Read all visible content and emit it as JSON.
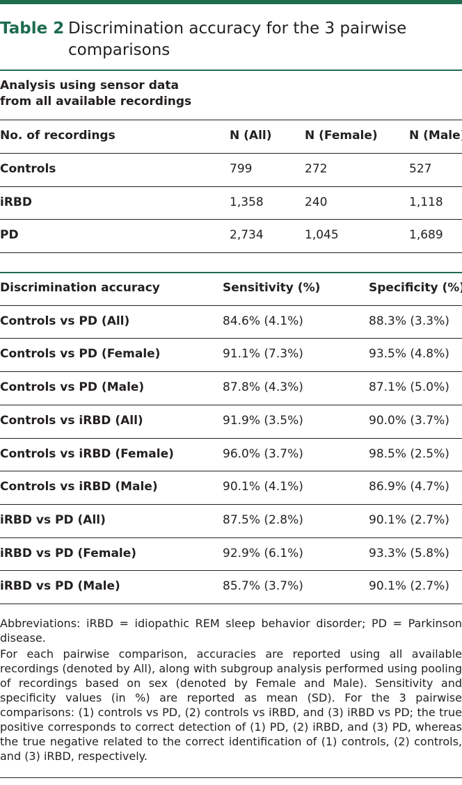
{
  "table": {
    "label": "Table 2",
    "title": "Discrimination accuracy for the 3 pairwise comparisons",
    "section_title_line1": "Analysis using sensor data",
    "section_title_line2": "from all available recordings"
  },
  "recordings": {
    "headers": [
      "No. of recordings",
      "N (All)",
      "N (Female)",
      "N (Male)"
    ],
    "rows": [
      [
        "Controls",
        "799",
        "272",
        "527"
      ],
      [
        "iRBD",
        "1,358",
        "240",
        "1,118"
      ],
      [
        "PD",
        "2,734",
        "1,045",
        "1,689"
      ]
    ]
  },
  "accuracy": {
    "headers": [
      "Discrimination accuracy",
      "Sensitivity (%)",
      "Specificity (%)"
    ],
    "rows": [
      [
        "Controls vs PD (All)",
        "84.6% (4.1%)",
        "88.3% (3.3%)"
      ],
      [
        "Controls vs PD (Female)",
        "91.1% (7.3%)",
        "93.5% (4.8%)"
      ],
      [
        "Controls vs PD (Male)",
        "87.8% (4.3%)",
        "87.1% (5.0%)"
      ],
      [
        "Controls vs iRBD (All)",
        "91.9% (3.5%)",
        "90.0% (3.7%)"
      ],
      [
        "Controls vs iRBD (Female)",
        "96.0% (3.7%)",
        "98.5% (2.5%)"
      ],
      [
        "Controls vs iRBD (Male)",
        "90.1% (4.1%)",
        "86.9% (4.7%)"
      ],
      [
        "iRBD vs PD (All)",
        "87.5% (2.8%)",
        "90.1% (2.7%)"
      ],
      [
        "iRBD vs PD (Female)",
        "92.9% (6.1%)",
        "93.3% (5.8%)"
      ],
      [
        "iRBD vs PD (Male)",
        "85.7% (3.7%)",
        "90.1% (2.7%)"
      ]
    ]
  },
  "footnotes": {
    "abbreviations": "Abbreviations: iRBD = idiopathic REM sleep behavior disorder; PD = Parkinson disease.",
    "note": "For each pairwise comparison, accuracies are reported using all available recordings (denoted by All), along with subgroup analysis performed using pooling of recordings based on sex (denoted by Female and Male). Sensitivity and specificity values (in %) are reported as mean (SD). For the 3 pairwise comparisons: (1) controls vs PD, (2) controls vs iRBD, and (3) iRBD vs PD; the true positive corresponds to correct detection of (1) PD, (2) iRBD, and (3) PD, whereas the true negative related to the correct identification of (1) controls, (2) controls, and (3) iRBD, respectively."
  }
}
